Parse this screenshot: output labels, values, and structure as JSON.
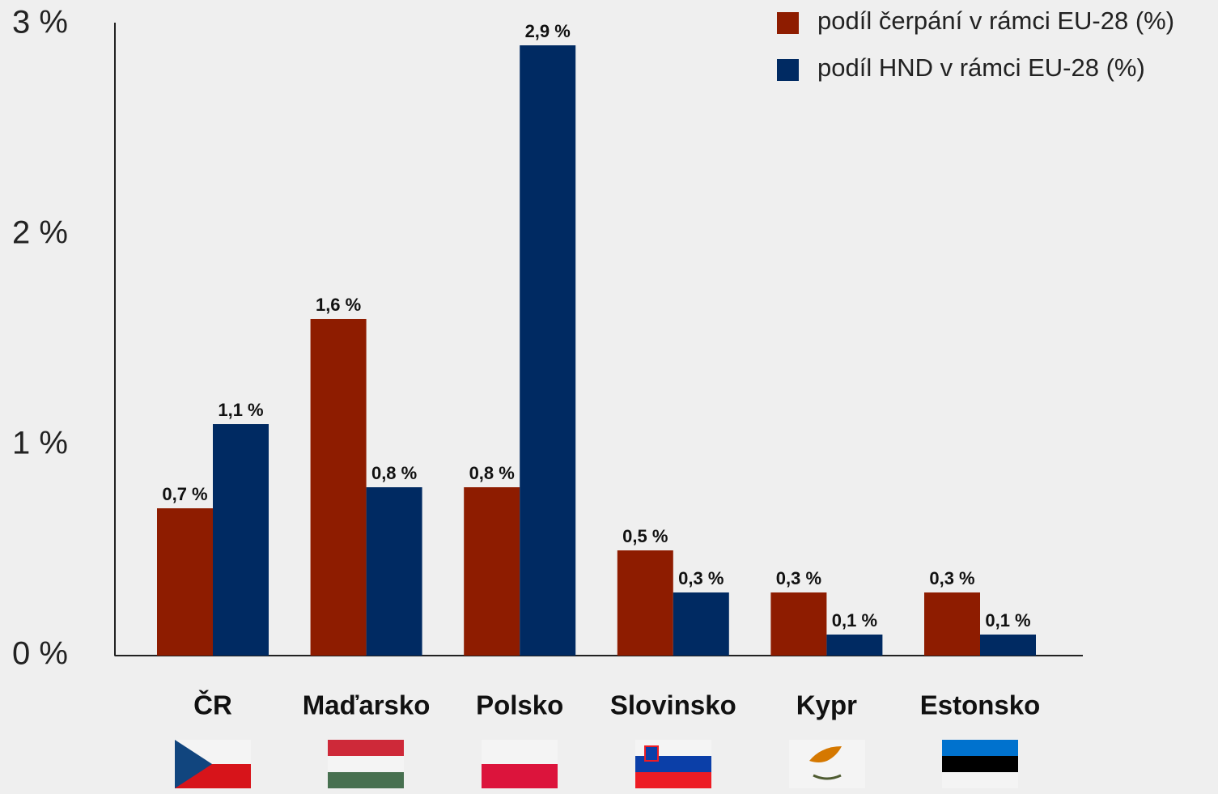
{
  "chart_data": {
    "type": "bar",
    "categories": [
      "ČR",
      "Maďarsko",
      "Polsko",
      "Slovinsko",
      "Kypr",
      "Estonsko"
    ],
    "series": [
      {
        "name": "podíl čerpání v rámci EU-28 (%)",
        "color": "#8e1c00",
        "values": [
          0.7,
          1.6,
          0.8,
          0.5,
          0.3,
          0.3
        ],
        "value_labels": [
          "0,7 %",
          "1,6 %",
          "0,8 %",
          "0,5 %",
          "0,3 %",
          "0,3 %"
        ]
      },
      {
        "name": "podíl HND v rámci EU-28 (%)",
        "color": "#002a62",
        "values": [
          1.1,
          0.8,
          2.9,
          0.3,
          0.1,
          0.1
        ],
        "value_labels": [
          "1,1 %",
          "0,8 %",
          "2,9 %",
          "0,3 %",
          "0,1 %",
          "0,1 %"
        ]
      }
    ],
    "ylim": [
      0,
      3
    ],
    "yticks": [
      {
        "value": 0,
        "label": "0 %"
      },
      {
        "value": 1,
        "label": "1 %"
      },
      {
        "value": 2,
        "label": "2 %"
      },
      {
        "value": 3,
        "label": "3 %"
      }
    ],
    "legend": "upper right"
  }
}
